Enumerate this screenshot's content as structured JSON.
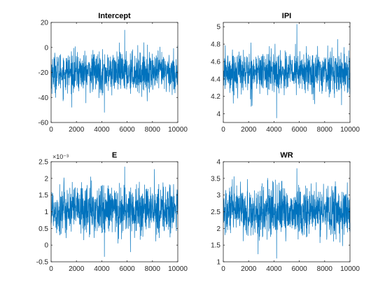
{
  "chart_data": [
    {
      "type": "line",
      "title": "Intercept",
      "x_range": [
        0,
        10000
      ],
      "ylim": [
        -60,
        20
      ],
      "x_ticks": [
        "0",
        "2000",
        "4000",
        "6000",
        "8000",
        "10000"
      ],
      "y_ticks": [
        -60,
        -40,
        -20,
        0,
        20
      ],
      "y_tick_labels": [
        "-60",
        "-40",
        "-20",
        "0",
        "20"
      ],
      "exponent_label": "",
      "series": [
        {
          "mean": -20,
          "sd": 8,
          "min": -52,
          "max": 14
        }
      ]
    },
    {
      "type": "line",
      "title": "IPI",
      "x_range": [
        0,
        10000
      ],
      "ylim": [
        3.9,
        5.05
      ],
      "x_ticks": [
        "0",
        "2000",
        "4000",
        "6000",
        "8000",
        "10000"
      ],
      "y_ticks": [
        4,
        4.2,
        4.4,
        4.6,
        4.8,
        5
      ],
      "y_tick_labels": [
        "4",
        "4.2",
        "4.4",
        "4.6",
        "4.8",
        "5"
      ],
      "exponent_label": "",
      "series": [
        {
          "mean": 4.48,
          "sd": 0.12,
          "min": 3.95,
          "max": 5.03
        }
      ]
    },
    {
      "type": "line",
      "title": "E",
      "x_range": [
        0,
        10000
      ],
      "ylim": [
        -0.5,
        2.5
      ],
      "x_ticks": [
        "0",
        "2000",
        "4000",
        "6000",
        "8000",
        "10000"
      ],
      "y_ticks": [
        -0.5,
        0,
        0.5,
        1,
        1.5,
        2,
        2.5
      ],
      "y_tick_labels": [
        "-0.5",
        "0",
        "0.5",
        "1",
        "1.5",
        "2",
        "2.5"
      ],
      "exponent_label": "×10⁻³",
      "series": [
        {
          "mean": 1.05,
          "sd": 0.38,
          "min": -0.35,
          "max": 2.35
        }
      ]
    },
    {
      "type": "line",
      "title": "WR",
      "x_range": [
        0,
        10000
      ],
      "ylim": [
        1,
        4
      ],
      "x_ticks": [
        "0",
        "2000",
        "4000",
        "6000",
        "8000",
        "10000"
      ],
      "y_ticks": [
        1,
        1.5,
        2,
        2.5,
        3,
        3.5,
        4
      ],
      "y_tick_labels": [
        "1",
        "1.5",
        "2",
        "2.5",
        "3",
        "3.5",
        "4"
      ],
      "exponent_label": "",
      "series": [
        {
          "mean": 2.5,
          "sd": 0.38,
          "min": 1.1,
          "max": 3.8
        }
      ]
    }
  ],
  "colors": {
    "trace": "#0072BD"
  }
}
